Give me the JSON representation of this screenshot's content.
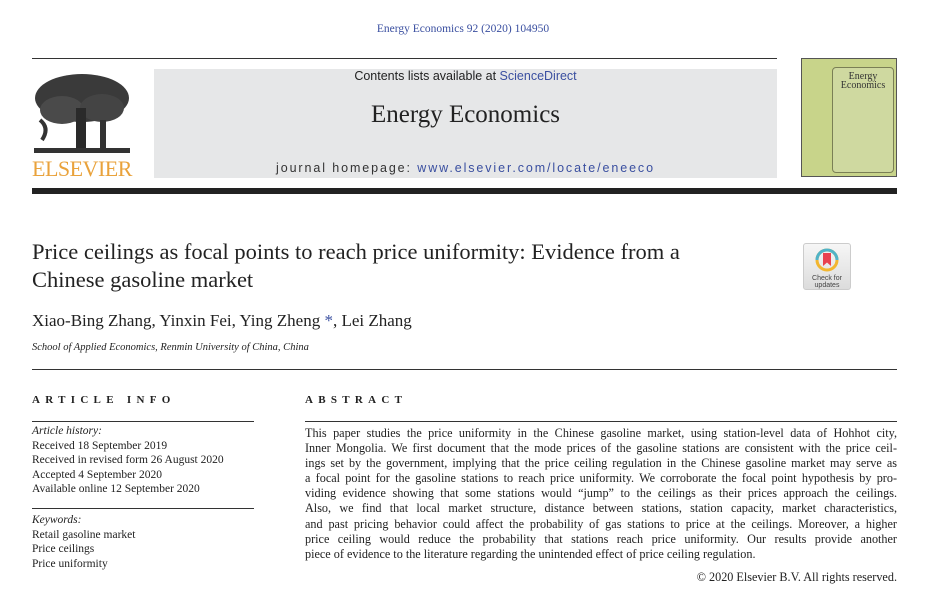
{
  "citation": "Energy Economics 92 (2020) 104950",
  "masthead": {
    "contents_prefix": "Contents lists available at ",
    "contents_link": "ScienceDirect",
    "journal_title": "Energy Economics",
    "homepage_prefix": "journal homepage: ",
    "homepage_url": "www.elsevier.com/locate/eneeco",
    "publisher_logo_text": "ELSEVIER",
    "cover_title": "Energy Economics",
    "colors": {
      "link": "#3a4fa0",
      "elsevier_orange": "#e9a23b",
      "cover_green": "#c8d48a",
      "masthead_gray": "#e6e7e8"
    }
  },
  "article": {
    "title_lines": [
      "Price ceilings as focal points to reach price uniformity: Evidence from a",
      "Chinese gasoline market"
    ],
    "check_updates": {
      "line1": "Check for",
      "line2": "updates",
      "icon": "bookmark-circle-icon"
    },
    "authors": [
      "Xiao-Bing Zhang",
      "Yinxin Fei",
      "Ying Zheng",
      "Lei Zhang"
    ],
    "corresponding_mark": "*",
    "affiliation": "School of Applied Economics, Renmin University of China, China"
  },
  "article_info": {
    "heading": "ARTICLE INFO",
    "history_label": "Article history:",
    "history": [
      "Received 18 September 2019",
      "Received in revised form 26 August 2020",
      "Accepted 4 September 2020",
      "Available online 12 September 2020"
    ],
    "keywords_label": "Keywords:",
    "keywords": [
      "Retail gasoline market",
      "Price ceilings",
      "Price uniformity"
    ]
  },
  "abstract": {
    "heading": "ABSTRACT",
    "lines": [
      "This paper studies the price uniformity in the Chinese gasoline market, using station-level data of Hohhot city,",
      "Inner Mongolia. We first document that the mode prices of the gasoline stations are consistent with the price ceil-",
      "ings set by the government, implying that the price ceiling regulation in the Chinese gasoline market may serve as",
      "a focal point for the gasoline stations to reach price uniformity. We corroborate the focal point hypothesis by pro-",
      "viding evidence showing that some stations would “jump” to the ceilings as their prices approach the ceilings.",
      "Also, we find that local market structure, distance between stations, station capacity, market characteristics,",
      "and past pricing behavior could affect the probability of gas stations to price at the ceilings. Moreover, a higher",
      "price ceiling would reduce the probability that stations reach price uniformity. Our results provide another",
      "piece of evidence to the literature regarding the unintended effect of price ceiling regulation."
    ],
    "copyright": "© 2020 Elsevier B.V. All rights reserved."
  }
}
